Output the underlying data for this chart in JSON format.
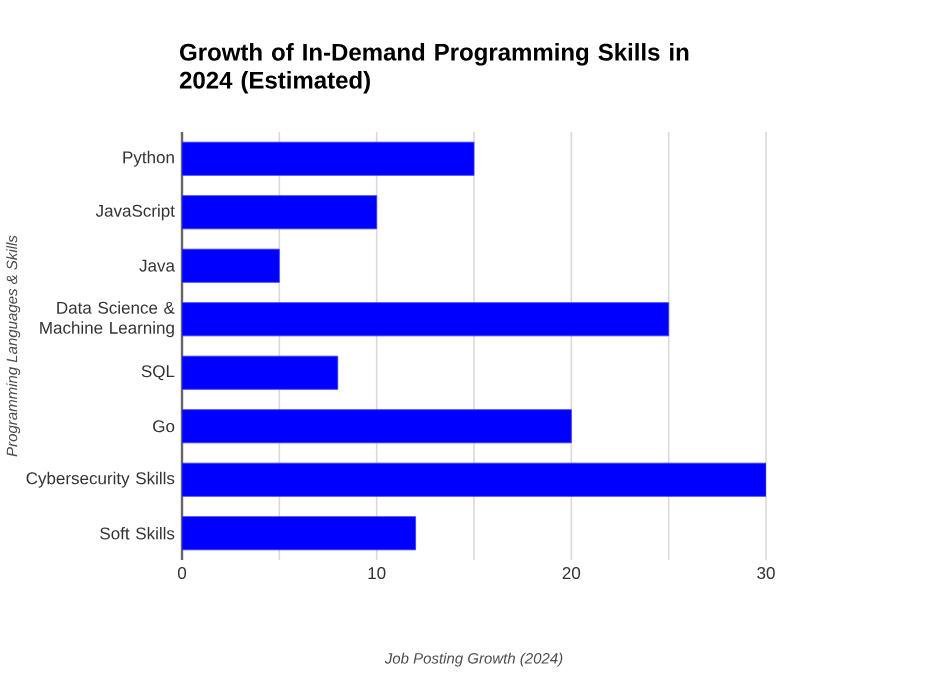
{
  "chart_data": {
    "type": "bar",
    "orientation": "horizontal",
    "title": "Growth of In-Demand Programming Skills in 2024 (Estimated)",
    "xlabel": "Job Posting Growth (2024)",
    "ylabel": "Programming Languages & Skills",
    "categories": [
      "Python",
      "JavaScript",
      "Java",
      "Data Science & Machine Learning",
      "SQL",
      "Go",
      "Cybersecurity Skills",
      "Soft Skills"
    ],
    "values": [
      15,
      10,
      5,
      25,
      8,
      20,
      30,
      12
    ],
    "color": "#0000ff",
    "xlim": [
      0,
      30
    ],
    "xticks": [
      0,
      {
        "value": 5,
        "label": null
      },
      10,
      {
        "value": 15,
        "label": null
      },
      20,
      {
        "value": 25,
        "label": null
      },
      30
    ],
    "grid": "x"
  }
}
